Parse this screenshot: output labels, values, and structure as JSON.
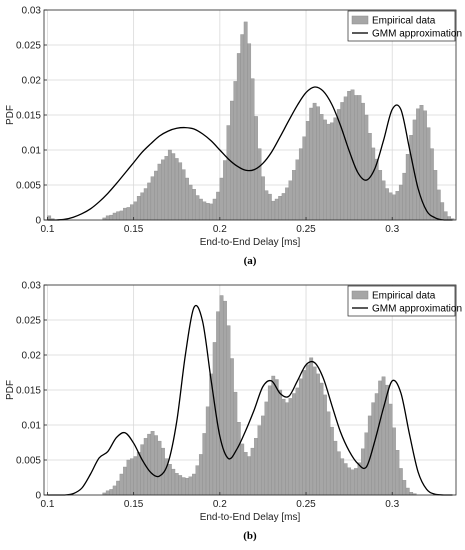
{
  "chart_data": [
    {
      "type": "bar",
      "panel_label": "(a)",
      "xlabel": "End-to-End Delay [ms]",
      "ylabel": "PDF",
      "xlim": [
        0.098,
        0.337
      ],
      "ylim": [
        0,
        0.03
      ],
      "xticks": [
        "0.1",
        "0.15",
        "0.2",
        "0.25",
        "0.3"
      ],
      "yticks": [
        "0",
        "0.005",
        "0.01",
        "0.015",
        "0.02",
        "0.025",
        "0.03"
      ],
      "grid": true,
      "legend_position": "top-right",
      "series": [
        {
          "name": "Empirical data",
          "kind": "histogram",
          "color": "#a6a6a6",
          "x_start": 0.1,
          "bin_width": 0.002,
          "values": [
            0.0006,
            0.0002,
            0,
            0,
            0,
            0,
            0,
            0,
            0,
            0,
            0,
            0,
            0,
            0,
            0,
            0,
            0.0003,
            0.0006,
            0.0007,
            0.001,
            0.0012,
            0.0013,
            0.0017,
            0.0018,
            0.0022,
            0.0026,
            0.0034,
            0.0039,
            0.0045,
            0.0053,
            0.0062,
            0.007,
            0.008,
            0.0086,
            0.0091,
            0.01,
            0.0095,
            0.0088,
            0.0082,
            0.0072,
            0.006,
            0.005,
            0.0044,
            0.0035,
            0.003,
            0.0026,
            0.0024,
            0.0023,
            0.003,
            0.004,
            0.006,
            0.0085,
            0.0135,
            0.017,
            0.0198,
            0.0238,
            0.0265,
            0.0283,
            0.0252,
            0.0202,
            0.0148,
            0.0102,
            0.0062,
            0.0042,
            0.0037,
            0.0027,
            0.003,
            0.0034,
            0.0038,
            0.0046,
            0.0056,
            0.0071,
            0.0086,
            0.0102,
            0.0119,
            0.0141,
            0.016,
            0.0167,
            0.0162,
            0.0151,
            0.0143,
            0.0137,
            0.0139,
            0.0146,
            0.0158,
            0.0168,
            0.0176,
            0.0184,
            0.0186,
            0.0178,
            0.0178,
            0.0167,
            0.015,
            0.0124,
            0.0103,
            0.0087,
            0.0071,
            0.0056,
            0.0045,
            0.0039,
            0.0036,
            0.0041,
            0.005,
            0.0067,
            0.0094,
            0.0121,
            0.0143,
            0.0159,
            0.0164,
            0.0156,
            0.0132,
            0.0102,
            0.0071,
            0.0043,
            0.0025,
            0.0012,
            0.0005,
            0.0002,
            0,
            0
          ]
        },
        {
          "name": "GMM approximation",
          "kind": "line",
          "color": "#000000",
          "x": [
            0.1,
            0.105,
            0.11,
            0.115,
            0.12,
            0.125,
            0.13,
            0.135,
            0.14,
            0.145,
            0.15,
            0.155,
            0.16,
            0.165,
            0.17,
            0.175,
            0.18,
            0.185,
            0.19,
            0.195,
            0.2,
            0.205,
            0.21,
            0.215,
            0.22,
            0.225,
            0.23,
            0.235,
            0.24,
            0.245,
            0.25,
            0.255,
            0.26,
            0.265,
            0.27,
            0.275,
            0.28,
            0.285,
            0.29,
            0.295,
            0.3,
            0.305,
            0.31,
            0.315,
            0.32,
            0.325,
            0.33,
            0.335
          ],
          "y": [
            0,
            0,
            0.0001,
            0.0004,
            0.0009,
            0.0016,
            0.0026,
            0.0038,
            0.0052,
            0.0067,
            0.0082,
            0.0097,
            0.0109,
            0.012,
            0.0127,
            0.0131,
            0.0132,
            0.013,
            0.0123,
            0.0113,
            0.01,
            0.0087,
            0.0077,
            0.0071,
            0.0072,
            0.0081,
            0.0097,
            0.0119,
            0.0142,
            0.0164,
            0.0182,
            0.019,
            0.0184,
            0.0165,
            0.0135,
            0.0099,
            0.0068,
            0.0057,
            0.0074,
            0.0114,
            0.0158,
            0.0158,
            0.0102,
            0.0045,
            0.0013,
            0.0003,
            0,
            0
          ]
        }
      ]
    },
    {
      "type": "bar",
      "panel_label": "(b)",
      "xlabel": "End-to-End Delay [ms]",
      "ylabel": "PDF",
      "xlim": [
        0.098,
        0.337
      ],
      "ylim": [
        0,
        0.03
      ],
      "xticks": [
        "0.1",
        "0.15",
        "0.2",
        "0.25",
        "0.3"
      ],
      "yticks": [
        "0",
        "0.005",
        "0.01",
        "0.015",
        "0.02",
        "0.025",
        "0.03"
      ],
      "grid": true,
      "legend_position": "top-right",
      "series": [
        {
          "name": "Empirical data",
          "kind": "histogram",
          "color": "#a6a6a6",
          "x_start": 0.1,
          "bin_width": 0.002,
          "values": [
            0,
            0,
            0,
            0,
            0,
            0,
            0,
            0,
            0,
            0,
            0,
            0,
            0,
            0,
            0,
            0,
            0.0003,
            0.0006,
            0.0008,
            0.0013,
            0.002,
            0.003,
            0.004,
            0.005,
            0.0052,
            0.0055,
            0.0061,
            0.0072,
            0.0081,
            0.0087,
            0.0091,
            0.0085,
            0.0077,
            0.0067,
            0.0052,
            0.0044,
            0.0037,
            0.0031,
            0.0028,
            0.0025,
            0.0024,
            0.0026,
            0.003,
            0.0042,
            0.0058,
            0.0088,
            0.0126,
            0.0173,
            0.0218,
            0.0262,
            0.0285,
            0.0277,
            0.0242,
            0.0195,
            0.0147,
            0.0104,
            0.0073,
            0.0061,
            0.0055,
            0.0067,
            0.0081,
            0.0099,
            0.0113,
            0.0133,
            0.0156,
            0.017,
            0.0165,
            0.015,
            0.0137,
            0.0132,
            0.0138,
            0.0145,
            0.0153,
            0.0166,
            0.0178,
            0.0186,
            0.0196,
            0.0183,
            0.0173,
            0.016,
            0.0143,
            0.0119,
            0.0097,
            0.0077,
            0.0062,
            0.0052,
            0.0045,
            0.0039,
            0.0036,
            0.0038,
            0.0046,
            0.0066,
            0.0089,
            0.0113,
            0.0132,
            0.0145,
            0.0163,
            0.0169,
            0.0157,
            0.013,
            0.0096,
            0.0064,
            0.0038,
            0.0021,
            0.001,
            0.0004,
            0.0002,
            0,
            0,
            0
          ]
        },
        {
          "name": "GMM approximation",
          "kind": "line",
          "color": "#000000",
          "x": [
            0.1,
            0.105,
            0.11,
            0.115,
            0.12,
            0.125,
            0.13,
            0.135,
            0.14,
            0.145,
            0.15,
            0.155,
            0.16,
            0.165,
            0.17,
            0.175,
            0.18,
            0.185,
            0.19,
            0.195,
            0.2,
            0.205,
            0.21,
            0.215,
            0.22,
            0.225,
            0.23,
            0.235,
            0.24,
            0.245,
            0.25,
            0.255,
            0.26,
            0.265,
            0.27,
            0.275,
            0.28,
            0.285,
            0.29,
            0.295,
            0.3,
            0.305,
            0.31,
            0.315,
            0.32,
            0.325,
            0.33,
            0.335
          ],
          "y": [
            0,
            0,
            0,
            0.0002,
            0.001,
            0.003,
            0.0053,
            0.0062,
            0.0082,
            0.0089,
            0.0074,
            0.005,
            0.0032,
            0.0027,
            0.0046,
            0.0105,
            0.02,
            0.0268,
            0.0248,
            0.0163,
            0.0084,
            0.0052,
            0.0066,
            0.0092,
            0.0122,
            0.0155,
            0.0163,
            0.0145,
            0.0141,
            0.0163,
            0.0186,
            0.0189,
            0.0167,
            0.0128,
            0.009,
            0.0063,
            0.0045,
            0.004,
            0.0078,
            0.0125,
            0.0163,
            0.0146,
            0.0087,
            0.0033,
            0.0008,
            0.0001,
            0,
            0
          ]
        }
      ]
    }
  ]
}
